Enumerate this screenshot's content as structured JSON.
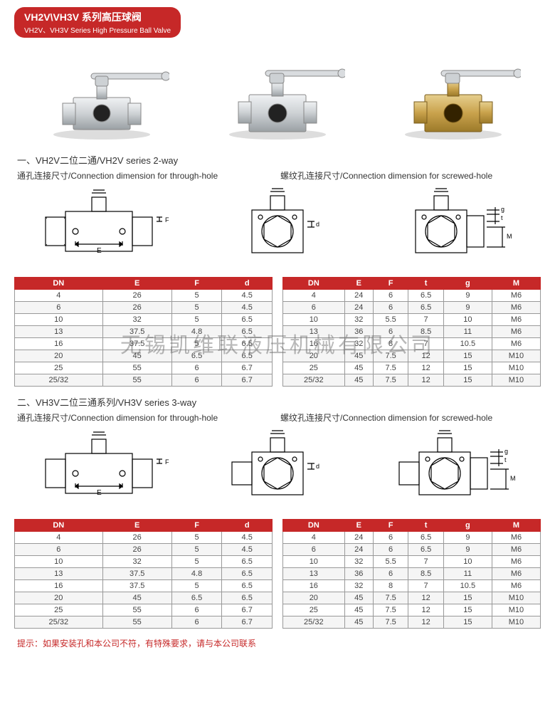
{
  "banner": {
    "title_cn": "VH2V\\VH3V 系列高压球阀",
    "title_en": "VH2V、VH3V Series High Pressure Ball Valve"
  },
  "watermark": "无锡凯维联液压机械有限公司",
  "section1": {
    "heading": "一、VH2V二位二通/VH2V series 2-way",
    "left_label": "通孔连接尺寸/Connection dimension for through-hole",
    "right_label": "螺纹孔连接尺寸/Connection dimension for screwed-hole"
  },
  "section2": {
    "heading": "二、VH3V二位三通系列/VH3V series 3-way",
    "left_label": "通孔连接尺寸/Connection dimension for through-hole",
    "right_label": "螺纹孔连接尺寸/Connection dimension for screwed-hole"
  },
  "table_s1_left": {
    "columns": [
      "DN",
      "E",
      "F",
      "d"
    ],
    "rows": [
      [
        "4",
        "26",
        "5",
        "4.5"
      ],
      [
        "6",
        "26",
        "5",
        "4.5"
      ],
      [
        "10",
        "32",
        "5",
        "6.5"
      ],
      [
        "13",
        "37.5",
        "4.8",
        "6.5"
      ],
      [
        "16",
        "37.5",
        "5",
        "6.5"
      ],
      [
        "20",
        "45",
        "6.5",
        "6.5"
      ],
      [
        "25",
        "55",
        "6",
        "6.7"
      ],
      [
        "25/32",
        "55",
        "6",
        "6.7"
      ]
    ]
  },
  "table_s1_right": {
    "columns": [
      "DN",
      "E",
      "F",
      "t",
      "g",
      "M"
    ],
    "rows": [
      [
        "4",
        "24",
        "6",
        "6.5",
        "9",
        "M6"
      ],
      [
        "6",
        "24",
        "6",
        "6.5",
        "9",
        "M6"
      ],
      [
        "10",
        "32",
        "5.5",
        "7",
        "10",
        "M6"
      ],
      [
        "13",
        "36",
        "6",
        "8.5",
        "11",
        "M6"
      ],
      [
        "16",
        "32",
        "8",
        "7",
        "10.5",
        "M6"
      ],
      [
        "20",
        "45",
        "7.5",
        "12",
        "15",
        "M10"
      ],
      [
        "25",
        "45",
        "7.5",
        "12",
        "15",
        "M10"
      ],
      [
        "25/32",
        "45",
        "7.5",
        "12",
        "15",
        "M10"
      ]
    ]
  },
  "table_s2_left": {
    "columns": [
      "DN",
      "E",
      "F",
      "d"
    ],
    "rows": [
      [
        "4",
        "26",
        "5",
        "4.5"
      ],
      [
        "6",
        "26",
        "5",
        "4.5"
      ],
      [
        "10",
        "32",
        "5",
        "6.5"
      ],
      [
        "13",
        "37.5",
        "4.8",
        "6.5"
      ],
      [
        "16",
        "37.5",
        "5",
        "6.5"
      ],
      [
        "20",
        "45",
        "6.5",
        "6.5"
      ],
      [
        "25",
        "55",
        "6",
        "6.7"
      ],
      [
        "25/32",
        "55",
        "6",
        "6.7"
      ]
    ]
  },
  "table_s2_right": {
    "columns": [
      "DN",
      "E",
      "F",
      "t",
      "g",
      "M"
    ],
    "rows": [
      [
        "4",
        "24",
        "6",
        "6.5",
        "9",
        "M6"
      ],
      [
        "6",
        "24",
        "6",
        "6.5",
        "9",
        "M6"
      ],
      [
        "10",
        "32",
        "5.5",
        "7",
        "10",
        "M6"
      ],
      [
        "13",
        "36",
        "6",
        "8.5",
        "11",
        "M6"
      ],
      [
        "16",
        "32",
        "8",
        "7",
        "10.5",
        "M6"
      ],
      [
        "20",
        "45",
        "7.5",
        "12",
        "15",
        "M10"
      ],
      [
        "25",
        "45",
        "7.5",
        "12",
        "15",
        "M10"
      ],
      [
        "25/32",
        "45",
        "7.5",
        "12",
        "15",
        "M10"
      ]
    ]
  },
  "footer": "提示：如果安装孔和本公司不符，有特殊要求，请与本公司联系",
  "colors": {
    "header_bg": "#c62828",
    "header_text": "#ffffff",
    "cell_border": "#999999",
    "row_alt_bg": "#f5f5f5",
    "body_color": "#333333",
    "steel": "#cdd1d4",
    "steel_dark": "#9aa0a4",
    "brass": "#c9a24c",
    "brass_dark": "#9c7a2a",
    "handle": "#d9dcdf"
  },
  "diagram_labels": {
    "E": "E",
    "F": "F",
    "d": "d",
    "g": "g",
    "t": "t",
    "M": "M"
  }
}
